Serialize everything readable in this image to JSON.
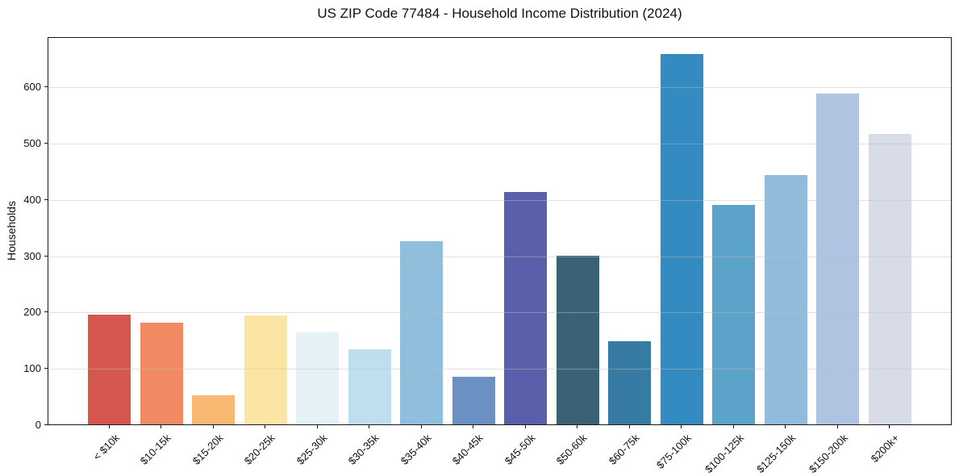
{
  "title": "US ZIP Code 77484 - Household Income Distribution (2024)",
  "chart_data": {
    "type": "bar",
    "title": "US ZIP Code 77484 - Household Income Distribution (2024)",
    "xlabel": "",
    "ylabel": "Households",
    "categories": [
      "< $10k",
      "$10-15k",
      "$15-20k",
      "$20-25k",
      "$25-30k",
      "$30-35k",
      "$35-40k",
      "$40-45k",
      "$45-50k",
      "$50-60k",
      "$60-75k",
      "$75-100k",
      "$100-125k",
      "$125-150k",
      "$150-200k",
      "$200k+"
    ],
    "values": [
      195,
      181,
      52,
      194,
      164,
      133,
      325,
      84,
      413,
      299,
      148,
      657,
      390,
      442,
      587,
      515
    ],
    "bar_colors": [
      "#d5574e",
      "#f18a63",
      "#f9b871",
      "#fce5a2",
      "#e4f1f7",
      "#bfdfee",
      "#90bedd",
      "#6a90c4",
      "#5a5fac",
      "#3a6176",
      "#357ba3",
      "#338bc1",
      "#5ba3c9",
      "#92bada",
      "#aec4e0",
      "#d8dbe8"
    ],
    "ylim": [
      0,
      689
    ],
    "yticks": [
      0,
      100,
      200,
      300,
      400,
      500,
      600
    ],
    "grid": "horizontal",
    "legend": "none",
    "x_tick_rotation": 45
  }
}
